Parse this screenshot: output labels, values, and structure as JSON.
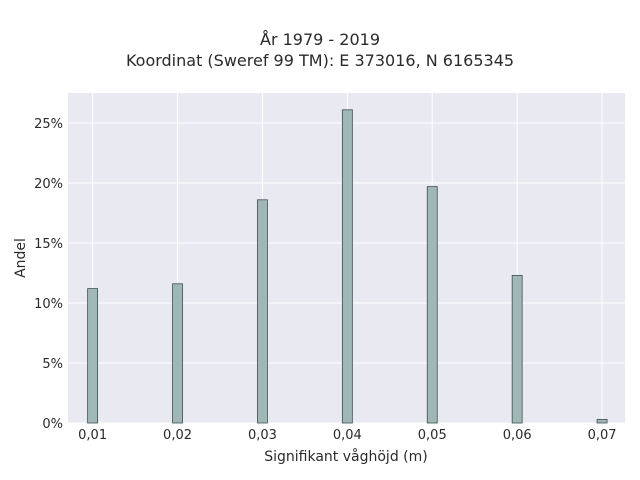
{
  "chart_data": {
    "type": "bar",
    "title_lines": [
      "År 1979 - 2019",
      "Koordinat (Sweref 99 TM): E 373016, N 6165345"
    ],
    "xlabel": "Signifikant våghöjd (m)",
    "ylabel": "Andel",
    "x_ticks": [
      "0,01",
      "0,02",
      "0,03",
      "0,04",
      "0,05",
      "0,06",
      "0,07"
    ],
    "x_tick_values": [
      0.01,
      0.02,
      0.03,
      0.04,
      0.05,
      0.06,
      0.07
    ],
    "y_ticks": [
      "0%",
      "5%",
      "10%",
      "15%",
      "20%",
      "25%"
    ],
    "y_tick_values": [
      0,
      5,
      10,
      15,
      20,
      25
    ],
    "xlim": [
      0.0071,
      0.0727
    ],
    "ylim": [
      0,
      27.5
    ],
    "grid": true,
    "bar_color": "#9fb8b6",
    "bar_edge_color": "#3f4f4e",
    "plot_bg": "#e9e9f1",
    "x": [
      0.01,
      0.02,
      0.03,
      0.04,
      0.05,
      0.06,
      0.07
    ],
    "values": [
      11.2,
      11.6,
      18.6,
      26.1,
      19.7,
      12.3,
      0.3
    ]
  }
}
